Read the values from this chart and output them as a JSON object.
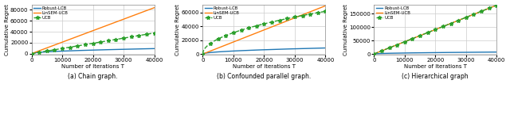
{
  "subplots": [
    {
      "title": "(a) Chain graph.",
      "ylabel": "Cumulative Regret",
      "xlabel": "Number of Iterations T",
      "xlim": [
        0,
        40000
      ],
      "ylim": [
        -2000,
        90000
      ],
      "yticks": [
        0,
        20000,
        40000,
        60000,
        80000
      ],
      "xticks": [
        0,
        10000,
        20000,
        30000,
        40000
      ],
      "lines": {
        "Robust-LCB": {
          "type": "sqrt",
          "scale": 46.0,
          "color": "#1f77b4",
          "style": "-",
          "linewidth": 1.0
        },
        "LinSEM-UCB": {
          "type": "linear",
          "slope": 2.1,
          "color": "#ff7f0e",
          "style": "-",
          "linewidth": 1.0
        },
        "UCB": {
          "type": "linear",
          "slope": 0.945,
          "color": "#2ca02c",
          "style": "--",
          "linewidth": 1.0
        }
      }
    },
    {
      "title": "(b) Confounded parallel graph.",
      "ylabel": "Cumulative Regret",
      "xlabel": "Number of Iterations T",
      "xlim": [
        0,
        40000
      ],
      "ylim": [
        -1000,
        72000
      ],
      "yticks": [
        0,
        20000,
        40000,
        60000
      ],
      "xticks": [
        0,
        10000,
        20000,
        30000,
        40000
      ],
      "lines": {
        "Robust-LCB": {
          "type": "sqrt",
          "scale": 44.0,
          "color": "#1f77b4",
          "style": "-",
          "linewidth": 1.0
        },
        "LinSEM-UCB": {
          "type": "linear",
          "slope": 1.75,
          "color": "#ff7f0e",
          "style": "-",
          "linewidth": 1.0
        },
        "UCB": {
          "type": "sqrt_fast",
          "scale": 310.0,
          "color": "#2ca02c",
          "style": "--",
          "linewidth": 1.0
        }
      }
    },
    {
      "title": "(c) Hierarchical graph",
      "ylabel": "Cumulative Regret",
      "xlabel": "Number of Iterations T",
      "xlim": [
        0,
        40000
      ],
      "ylim": [
        -3000,
        185000
      ],
      "yticks": [
        0,
        50000,
        100000,
        150000
      ],
      "xticks": [
        0,
        10000,
        20000,
        30000,
        40000
      ],
      "lines": {
        "Robust-LCB": {
          "type": "sqrt",
          "scale": 35.0,
          "color": "#1f77b4",
          "style": "-",
          "linewidth": 1.0
        },
        "LinSEM-UCB": {
          "type": "linear",
          "slope": 4.55,
          "color": "#ff7f0e",
          "style": "-",
          "linewidth": 1.0
        },
        "UCB": {
          "type": "linear",
          "slope": 4.55,
          "color": "#2ca02c",
          "style": "--",
          "linewidth": 1.0
        }
      }
    }
  ],
  "legend_order": [
    "Robust-LCB",
    "LinSEM-UCB",
    "UCB"
  ],
  "figure_bg": "white",
  "axes_bg": "white",
  "grid_color": "#cccccc",
  "ucb_marker_x": [
    0,
    2500,
    5000,
    7500,
    10000,
    12500,
    15000,
    17500,
    20000,
    22500,
    25000,
    27500,
    30000,
    32500,
    35000,
    37500,
    40000
  ]
}
